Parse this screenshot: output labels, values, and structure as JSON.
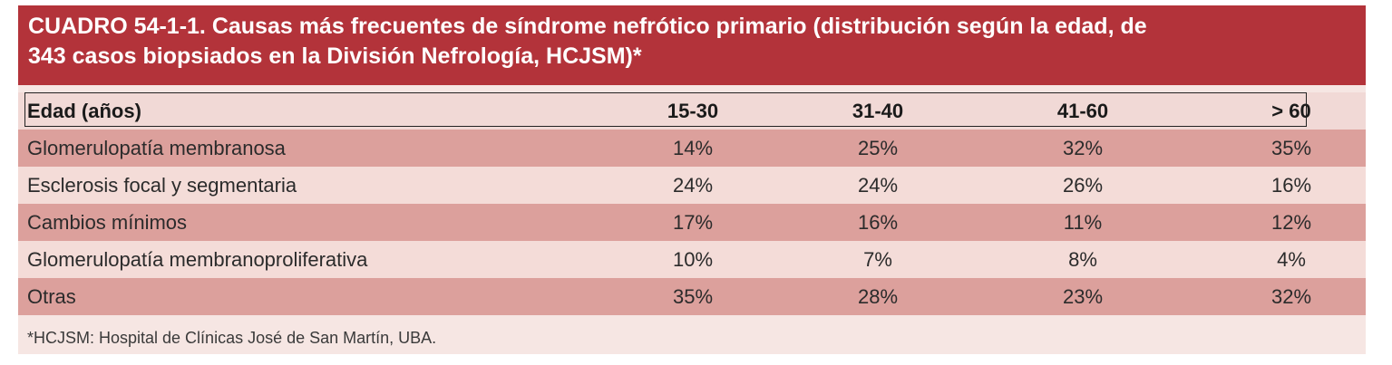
{
  "title": {
    "line1": "CUADRO 54-1-1. Causas más frecuentes de síndrome nefrótico primario (distribución según la edad, de",
    "line2": "343 casos biopsiados en la División Nefrología, HCJSM)*"
  },
  "table": {
    "header": [
      "Edad (años)",
      "15-30",
      "31-40",
      "41-60",
      "> 60"
    ],
    "rows": [
      [
        "Glomerulopatía membranosa",
        "14%",
        "25%",
        "32%",
        "35%"
      ],
      [
        "Esclerosis focal y segmentaria",
        "24%",
        "24%",
        "26%",
        "16%"
      ],
      [
        "Cambios mínimos",
        "17%",
        "16%",
        "11%",
        "12%"
      ],
      [
        "Glomerulopatía membranoproliferativa",
        "10%",
        "7%",
        "8%",
        "4%"
      ],
      [
        "Otras",
        "35%",
        "28%",
        "23%",
        "32%"
      ]
    ]
  },
  "footnote": "*HCJSM: Hospital de Clínicas José de San Martín, UBA.",
  "colors": {
    "title_background": "#b3333a",
    "row_light": "#f4dcd8",
    "row_dark": "#dca09c",
    "panel_background": "#f6e6e3"
  }
}
